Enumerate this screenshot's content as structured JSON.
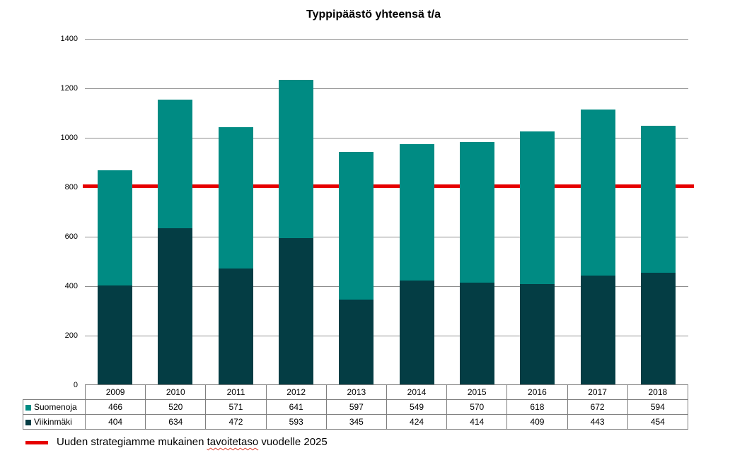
{
  "title": "Typpipäästö yhteensä t/a",
  "colors": {
    "suomenoja": "#008b83",
    "viikinmaki": "#043d44",
    "target_line": "#e60000",
    "gridline": "#8f8f8f",
    "table_border": "#7f7f7f"
  },
  "chart_data": {
    "type": "bar",
    "stacked": true,
    "title": "Typpipäästö yhteensä t/a",
    "categories": [
      "2009",
      "2010",
      "2011",
      "2012",
      "2013",
      "2014",
      "2015",
      "2016",
      "2017",
      "2018"
    ],
    "series": [
      {
        "name": "Suomenoja",
        "color_key": "suomenoja",
        "values": [
          466,
          520,
          571,
          641,
          597,
          549,
          570,
          618,
          672,
          594
        ]
      },
      {
        "name": "Viikinmäki",
        "color_key": "viikinmaki",
        "values": [
          404,
          634,
          472,
          593,
          345,
          424,
          414,
          409,
          443,
          454
        ]
      }
    ],
    "stack_order_bottom_to_top": [
      "Viikinmäki",
      "Suomenoja"
    ],
    "ylim": [
      0,
      1400
    ],
    "yticks": [
      0,
      200,
      400,
      600,
      800,
      1000,
      1200,
      1400
    ],
    "grid": true,
    "legend_position": "table-left",
    "target_line": {
      "value": 805,
      "label": "Uuden strategiamme mukainen tavoitetaso vuodelle 2025"
    }
  },
  "target_legend": {
    "text_before": "Uuden strategiamme mukainen ",
    "misspelled_word": "tavoitetaso",
    "text_after": " vuodelle 2025"
  }
}
